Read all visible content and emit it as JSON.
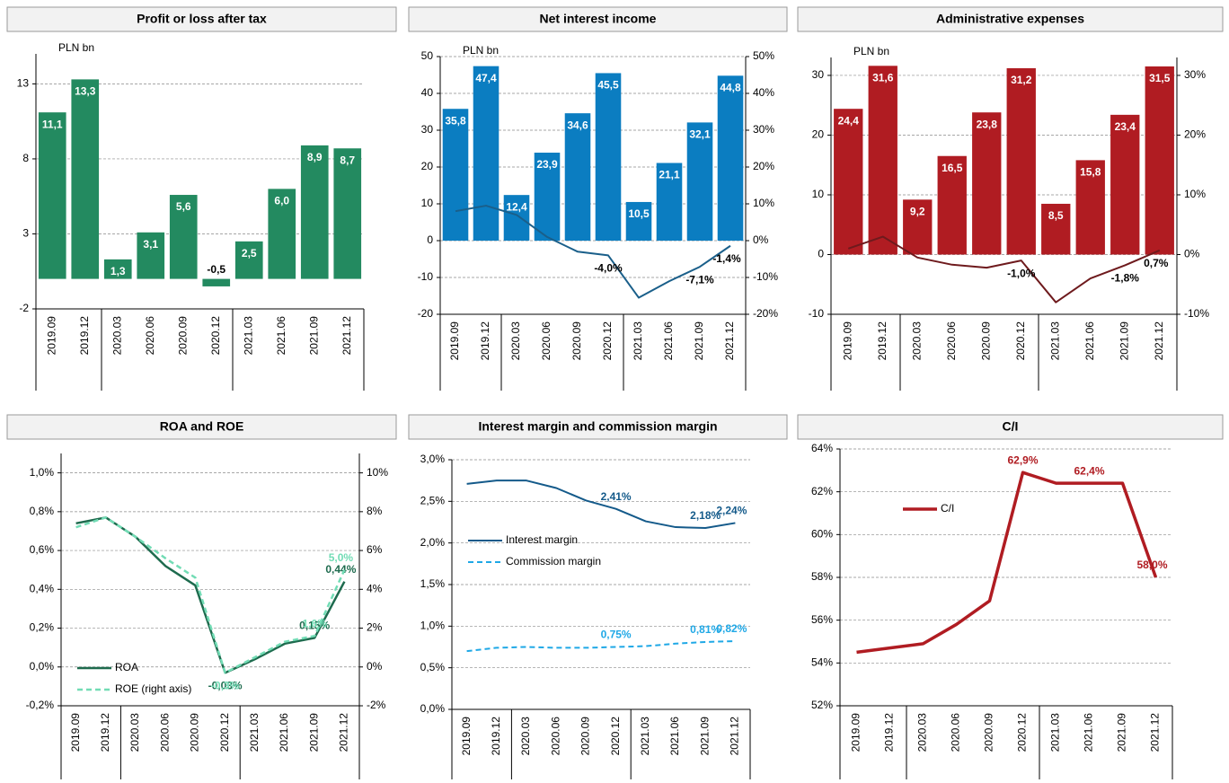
{
  "chart_data": [
    {
      "type": "bar",
      "title": "Profit or loss after tax",
      "y_label": "PLN bn",
      "categories": [
        "2019.09",
        "2019.12",
        "2020.03",
        "2020.06",
        "2020.09",
        "2020.12",
        "2021.03",
        "2021.06",
        "2021.09",
        "2021.12"
      ],
      "series": [
        {
          "type": "bar",
          "color": "#238a60",
          "values": [
            11.1,
            13.3,
            1.3,
            3.1,
            5.6,
            -0.5,
            2.5,
            6.0,
            8.9,
            8.7
          ],
          "value_labels": [
            "11,1",
            "13,3",
            "1,3",
            "3,1",
            "5,6",
            "-0,5",
            "2,5",
            "6,0",
            "8,9",
            "8,7"
          ]
        }
      ],
      "ylim": [
        -2,
        15
      ],
      "yticks": [
        -2,
        3,
        8,
        13
      ],
      "grid": true
    },
    {
      "type": "bar",
      "title": "Net interest income",
      "y_label": "PLN bn",
      "categories": [
        "2019.09",
        "2019.12",
        "2020.03",
        "2020.06",
        "2020.09",
        "2020.12",
        "2021.03",
        "2021.06",
        "2021.09",
        "2021.12"
      ],
      "series": [
        {
          "type": "bar",
          "color": "#0b7dc1",
          "values": [
            35.8,
            47.4,
            12.4,
            23.9,
            34.6,
            45.5,
            10.5,
            21.1,
            32.1,
            44.8
          ],
          "value_labels": [
            "35,8",
            "47,4",
            "12,4",
            "23,9",
            "34,6",
            "45,5",
            "10,5",
            "21,1",
            "32,1",
            "44,8"
          ]
        },
        {
          "type": "line",
          "axis": "y2",
          "color": "#1a5f8a",
          "values": [
            8,
            9.5,
            7,
            1,
            -3,
            -4.0,
            -15.5,
            -11,
            -7.1,
            -1.4
          ],
          "value_labels": [
            null,
            null,
            null,
            null,
            null,
            "-4,0%",
            null,
            null,
            "-7,1%",
            "-1,4%"
          ]
        }
      ],
      "ylim": [
        -20,
        50
      ],
      "yticks": [
        -20,
        -10,
        0,
        10,
        20,
        30,
        40,
        50
      ],
      "y2lim": [
        -20,
        50
      ],
      "y2ticks": [
        {
          "value": -20,
          "label": "-20%"
        },
        {
          "value": -10,
          "label": "-10%"
        },
        {
          "value": 0,
          "label": "0%"
        },
        {
          "value": 10,
          "label": "10%"
        },
        {
          "value": 20,
          "label": "20%"
        },
        {
          "value": 30,
          "label": "30%"
        },
        {
          "value": 40,
          "label": "40%"
        },
        {
          "value": 50,
          "label": "50%"
        }
      ],
      "grid": true
    },
    {
      "type": "bar",
      "title": "Administrative expenses",
      "y_label": "PLN bn",
      "categories": [
        "2019.09",
        "2019.12",
        "2020.03",
        "2020.06",
        "2020.09",
        "2020.12",
        "2021.03",
        "2021.06",
        "2021.09",
        "2021.12"
      ],
      "series": [
        {
          "type": "bar",
          "color": "#b01c22",
          "values": [
            24.4,
            31.6,
            9.2,
            16.5,
            23.8,
            31.2,
            8.5,
            15.8,
            23.4,
            31.5
          ],
          "value_labels": [
            "24,4",
            "31,6",
            "9,2",
            "16,5",
            "23,8",
            "31,2",
            "8,5",
            "15,8",
            "23,4",
            "31,5"
          ]
        },
        {
          "type": "line",
          "axis": "y2",
          "color": "#6e1a1d",
          "values": [
            1,
            3,
            -0.5,
            -1.7,
            -2.2,
            -1.0,
            -8,
            -4,
            -1.8,
            0.7
          ],
          "value_labels": [
            null,
            null,
            null,
            null,
            null,
            "-1,0%",
            null,
            null,
            "-1,8%",
            "0,7%"
          ]
        }
      ],
      "ylim": [
        -10,
        33
      ],
      "yticks": [
        -10,
        0,
        10,
        20,
        30
      ],
      "y2lim": [
        -10,
        33
      ],
      "y2ticks": [
        {
          "value": -10,
          "label": "-10%"
        },
        {
          "value": 0,
          "label": "0%"
        },
        {
          "value": 10,
          "label": "10%"
        },
        {
          "value": 20,
          "label": "20%"
        },
        {
          "value": 30,
          "label": "30%"
        }
      ],
      "grid": true
    },
    {
      "type": "line",
      "title": "ROA and ROE",
      "legend": "lower-left",
      "categories": [
        "2019.09",
        "2019.12",
        "2020.03",
        "2020.06",
        "2020.09",
        "2020.12",
        "2021.03",
        "2021.06",
        "2021.09",
        "2021.12"
      ],
      "series": [
        {
          "name": "ROA",
          "color": "#1e6b4e",
          "values": [
            0.74,
            0.77,
            0.67,
            0.52,
            0.42,
            -0.03,
            0.04,
            0.12,
            0.15,
            0.44
          ],
          "value_labels": [
            null,
            null,
            null,
            null,
            null,
            "-0,03%",
            null,
            null,
            "0,15%",
            "0,44%"
          ]
        },
        {
          "name": "ROE (right axis)",
          "axis": "y2",
          "dashed": true,
          "color": "#72dcb5",
          "values": [
            7.2,
            7.7,
            6.7,
            5.6,
            4.6,
            -0.3,
            0.5,
            1.3,
            1.6,
            5.0
          ],
          "value_labels": [
            null,
            null,
            null,
            null,
            null,
            "-0,3%",
            null,
            null,
            "1,6%",
            "5,0%"
          ]
        }
      ],
      "ylim": [
        -0.2,
        1.1
      ],
      "yticks": [
        {
          "value": -0.2,
          "label": "-0,2%"
        },
        {
          "value": 0,
          "label": "0,0%"
        },
        {
          "value": 0.2,
          "label": "0,2%"
        },
        {
          "value": 0.4,
          "label": "0,4%"
        },
        {
          "value": 0.6,
          "label": "0,6%"
        },
        {
          "value": 0.8,
          "label": "0,8%"
        },
        {
          "value": 1.0,
          "label": "1,0%"
        }
      ],
      "y2lim": [
        -2,
        11
      ],
      "y2ticks": [
        {
          "value": -2,
          "label": "-2%"
        },
        {
          "value": 0,
          "label": "0%"
        },
        {
          "value": 2,
          "label": "2%"
        },
        {
          "value": 4,
          "label": "4%"
        },
        {
          "value": 6,
          "label": "6%"
        },
        {
          "value": 8,
          "label": "8%"
        },
        {
          "value": 10,
          "label": "10%"
        }
      ],
      "grid": true
    },
    {
      "type": "line",
      "title": "Interest margin and commission margin",
      "legend": "center-left",
      "categories": [
        "2019.09",
        "2019.12",
        "2020.03",
        "2020.06",
        "2020.09",
        "2020.12",
        "2021.03",
        "2021.06",
        "2021.09",
        "2021.12"
      ],
      "series": [
        {
          "name": "Interest margin",
          "color": "#145a8a",
          "values": [
            2.71,
            2.75,
            2.75,
            2.66,
            2.51,
            2.41,
            2.26,
            2.19,
            2.18,
            2.24
          ],
          "value_labels": [
            null,
            null,
            null,
            null,
            null,
            "2,41%",
            null,
            null,
            "2,18%",
            "2,24%"
          ]
        },
        {
          "name": "Commission margin",
          "dashed": true,
          "color": "#1fa8e6",
          "values": [
            0.7,
            0.74,
            0.75,
            0.74,
            0.74,
            0.75,
            0.76,
            0.79,
            0.81,
            0.82
          ],
          "value_labels": [
            null,
            null,
            null,
            null,
            null,
            "0,75%",
            null,
            null,
            "0,81%",
            "0,82%"
          ]
        }
      ],
      "ylim": [
        0,
        3
      ],
      "yticks": [
        {
          "value": 0,
          "label": "0,0%"
        },
        {
          "value": 0.5,
          "label": "0,5%"
        },
        {
          "value": 1.0,
          "label": "1,0%"
        },
        {
          "value": 1.5,
          "label": "1,5%"
        },
        {
          "value": 2.0,
          "label": "2,0%"
        },
        {
          "value": 2.5,
          "label": "2,5%"
        },
        {
          "value": 3.0,
          "label": "3,0%"
        }
      ],
      "grid": true
    },
    {
      "type": "line",
      "title": "C/I",
      "legend": "upper-left",
      "categories": [
        "2019.09",
        "2019.12",
        "2020.03",
        "2020.06",
        "2020.09",
        "2020.12",
        "2021.03",
        "2021.06",
        "2021.09",
        "2021.12"
      ],
      "series": [
        {
          "name": "C/I",
          "color": "#b01c22",
          "values": [
            54.5,
            54.7,
            54.9,
            55.8,
            56.9,
            62.9,
            62.4,
            62.4,
            62.4,
            58.0
          ],
          "value_labels": [
            null,
            null,
            null,
            null,
            null,
            "62,9%",
            null,
            "62,4%",
            null,
            "58,0%"
          ]
        }
      ],
      "ylim": [
        52,
        64
      ],
      "yticks": [
        {
          "value": 52,
          "label": "52%"
        },
        {
          "value": 54,
          "label": "54%"
        },
        {
          "value": 56,
          "label": "56%"
        },
        {
          "value": 58,
          "label": "58%"
        },
        {
          "value": 60,
          "label": "60%"
        },
        {
          "value": 62,
          "label": "62%"
        },
        {
          "value": 64,
          "label": "64%"
        }
      ],
      "grid": true
    }
  ]
}
